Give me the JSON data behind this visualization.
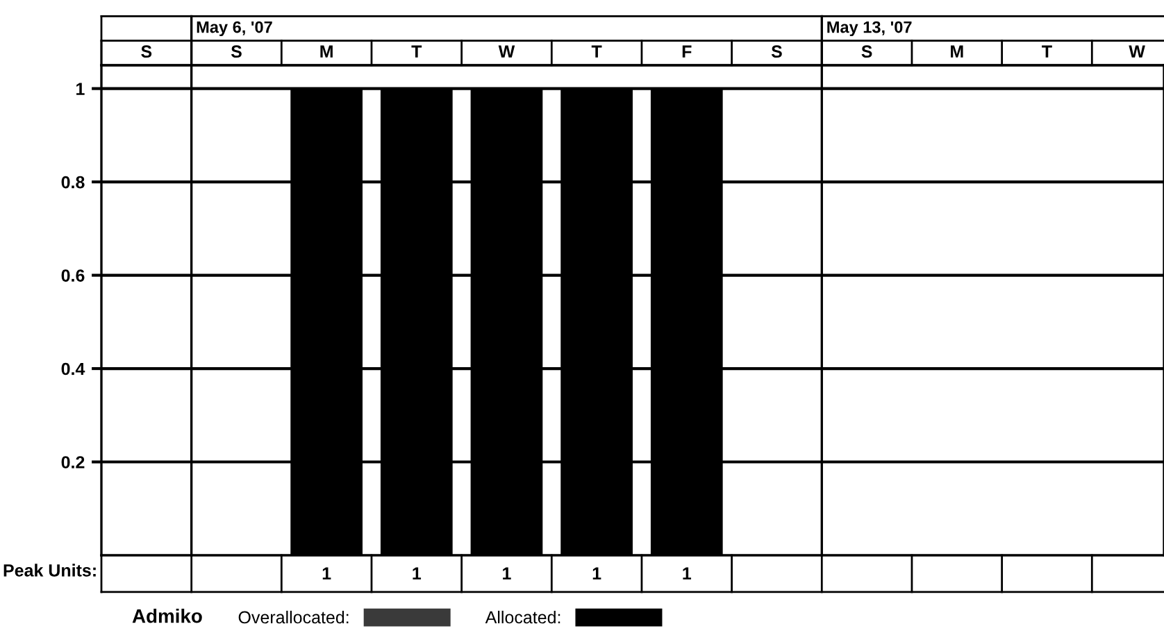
{
  "chart_data": {
    "type": "bar",
    "categories": [
      "S",
      "S",
      "M",
      "T",
      "W",
      "T",
      "F",
      "S",
      "S",
      "M",
      "T",
      "W"
    ],
    "series": [
      {
        "name": "Overallocated:",
        "color": "#3a3a3a",
        "values": [
          0,
          0,
          0,
          0,
          0,
          0,
          0,
          0,
          0,
          0,
          0,
          0
        ]
      },
      {
        "name": "Allocated:",
        "color": "#000000",
        "values": [
          0,
          0,
          1,
          1,
          1,
          1,
          1,
          0,
          0,
          0,
          0,
          0
        ],
        "value_labels": [
          null,
          null,
          "1",
          "1",
          "1",
          "1",
          "1",
          null,
          null,
          null,
          null,
          null
        ]
      }
    ],
    "ylim": [
      0,
      1.05
    ],
    "yticks": [
      0.2,
      0.4,
      0.6,
      0.8,
      1
    ],
    "grid": "y",
    "legend": "bottom",
    "annotations": [
      "May 6, '07",
      "May 13, '07",
      "Peak Units:",
      "Admiko"
    ]
  }
}
